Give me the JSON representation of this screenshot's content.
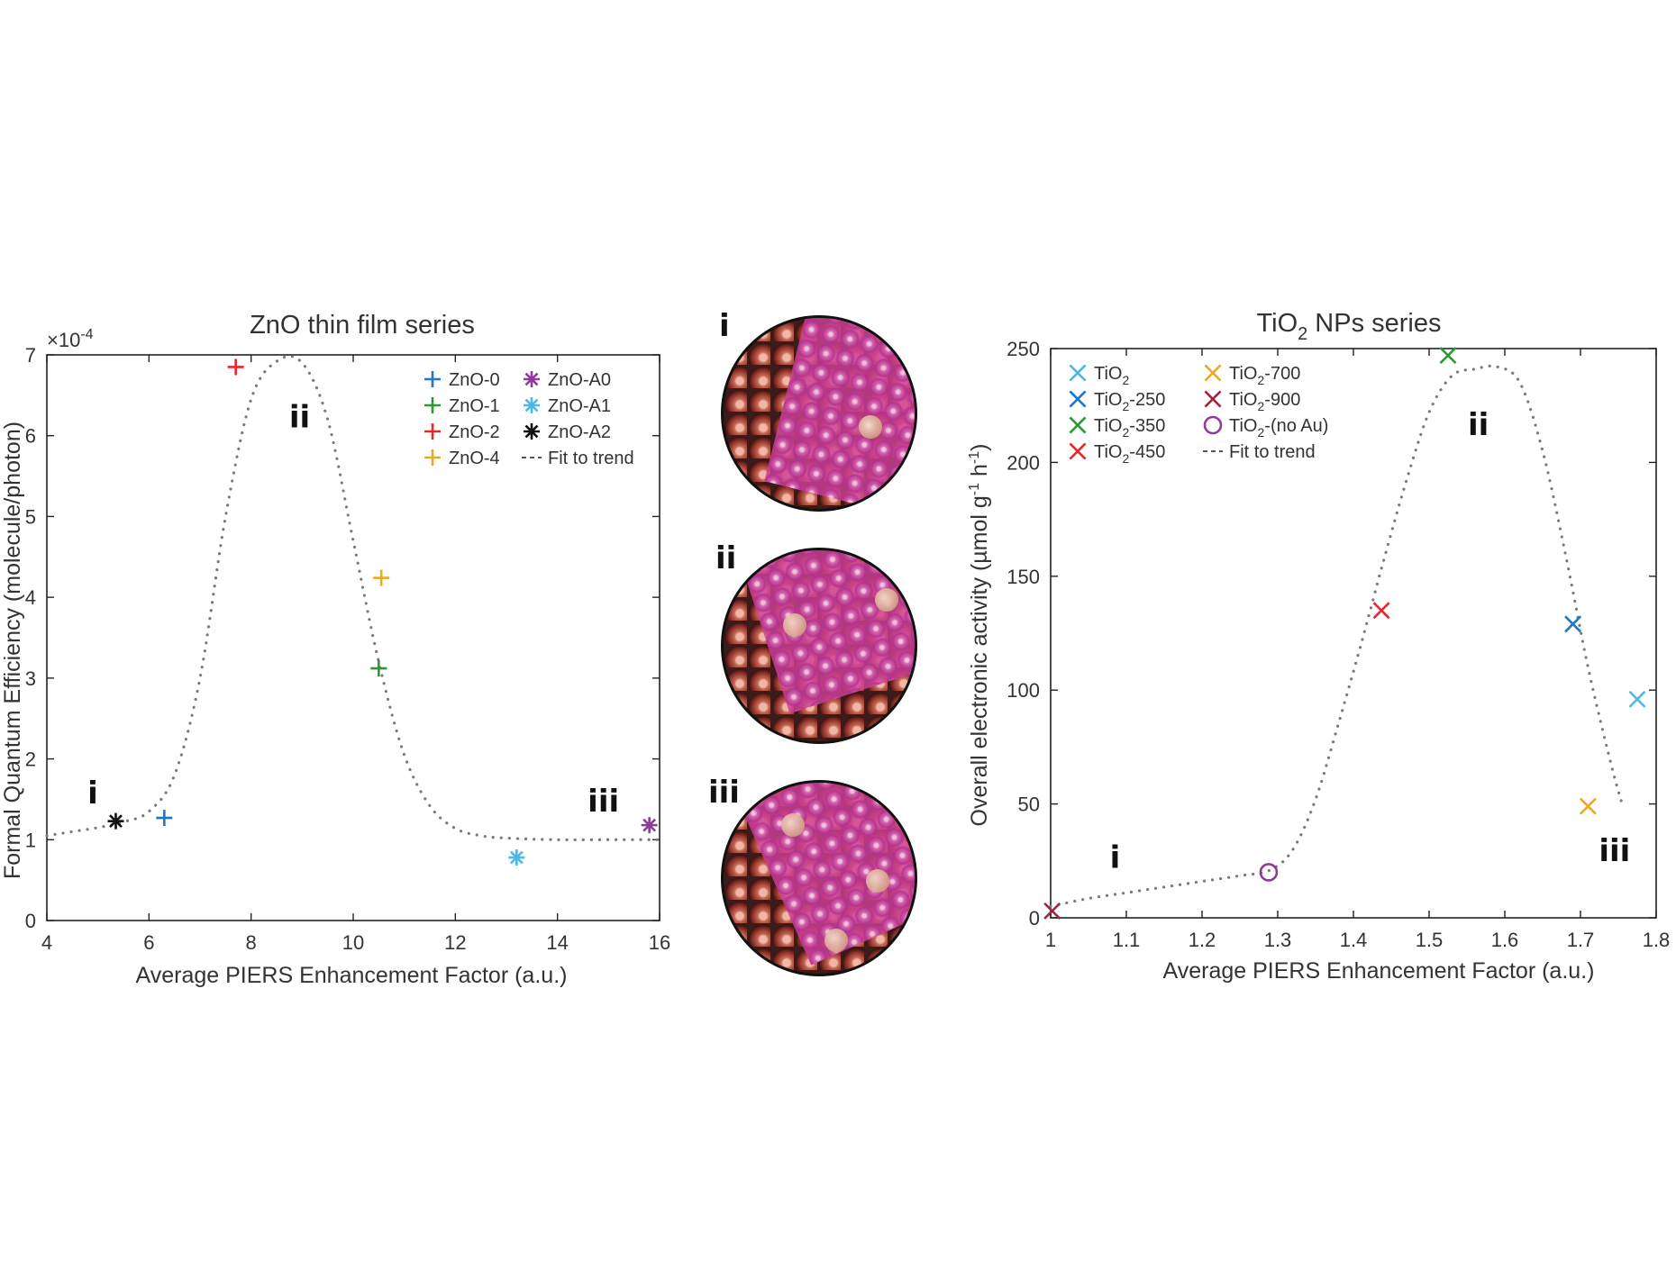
{
  "chart_data": [
    {
      "type": "scatter",
      "title": "ZnO thin film series",
      "xlabel": "Average PIERS Enhancement Factor (a.u.)",
      "ylabel": "Formal Quantum Efficiency (molecule/photon)",
      "y_multiplier": "×10",
      "y_multiplier_exp": "-4",
      "xlim": [
        4,
        16
      ],
      "ylim": [
        0,
        7
      ],
      "xticks": [
        4,
        6,
        8,
        10,
        12,
        14,
        16
      ],
      "yticks": [
        0,
        1,
        2,
        3,
        4,
        5,
        6,
        7
      ],
      "legend_position": "top-right",
      "series": [
        {
          "name": "ZnO-0",
          "marker": "plus",
          "color": "#1f77c4",
          "x": [
            6.3
          ],
          "y": [
            1.27
          ]
        },
        {
          "name": "ZnO-1",
          "marker": "plus",
          "color": "#2b9a35",
          "x": [
            10.5
          ],
          "y": [
            3.12
          ]
        },
        {
          "name": "ZnO-2",
          "marker": "plus",
          "color": "#e8262b",
          "x": [
            7.7
          ],
          "y": [
            6.85
          ]
        },
        {
          "name": "ZnO-4",
          "marker": "plus",
          "color": "#eaa92a",
          "x": [
            10.55
          ],
          "y": [
            4.24
          ]
        },
        {
          "name": "ZnO-A0",
          "marker": "asterisk",
          "color": "#8e3b97",
          "x": [
            15.8
          ],
          "y": [
            1.18
          ]
        },
        {
          "name": "ZnO-A1",
          "marker": "asterisk",
          "color": "#4db8e8",
          "x": [
            13.2
          ],
          "y": [
            0.78
          ]
        },
        {
          "name": "ZnO-A2",
          "marker": "asterisk",
          "color": "#111111",
          "x": [
            5.35
          ],
          "y": [
            1.23
          ]
        }
      ],
      "fit": {
        "name": "Fit to trend",
        "x": [
          4,
          4.5,
          5,
          5.5,
          6,
          6.5,
          7,
          7.5,
          8,
          8.5,
          9,
          9.5,
          10,
          10.5,
          11,
          11.5,
          12,
          12.5,
          13,
          14,
          15,
          16
        ],
        "y": [
          1.05,
          1.1,
          1.15,
          1.22,
          1.35,
          1.8,
          3.0,
          5.0,
          6.45,
          6.92,
          6.9,
          6.2,
          4.7,
          3.2,
          2.05,
          1.42,
          1.14,
          1.05,
          1.02,
          1.0,
          1.0,
          1.0
        ]
      },
      "annotations": [
        {
          "text": "i",
          "x": 4.9,
          "y": 1.45
        },
        {
          "text": "ii",
          "x": 8.95,
          "y": 6.1
        },
        {
          "text": "iii",
          "x": 14.9,
          "y": 1.35
        }
      ]
    },
    {
      "type": "scatter",
      "title": "TiO",
      "title_sub": "2",
      "title_rest": " NPs series",
      "xlabel": "Average PIERS Enhancement Factor (a.u.)",
      "ylabel": "Overall electronic activity (µmol g",
      "ylabel_sup1": "-1",
      "ylabel_mid": " h",
      "ylabel_sup2": "-1",
      "ylabel_end": ")",
      "xlim": [
        1,
        1.8
      ],
      "ylim": [
        0,
        250
      ],
      "xticks": [
        1,
        1.1,
        1.2,
        1.3,
        1.4,
        1.5,
        1.6,
        1.7,
        1.8
      ],
      "yticks": [
        0,
        50,
        100,
        150,
        200,
        250
      ],
      "legend_position": "top-left",
      "series": [
        {
          "name": "TiO",
          "sub": "2",
          "rest": "",
          "marker": "x",
          "color": "#4db8e8",
          "x": [
            1.775
          ],
          "y": [
            96
          ]
        },
        {
          "name": "TiO",
          "sub": "2",
          "rest": "-250",
          "marker": "x",
          "color": "#1f77c4",
          "x": [
            1.69
          ],
          "y": [
            129
          ]
        },
        {
          "name": "TiO",
          "sub": "2",
          "rest": "-350",
          "marker": "x",
          "color": "#2b9a35",
          "x": [
            1.525
          ],
          "y": [
            247
          ]
        },
        {
          "name": "TiO",
          "sub": "2",
          "rest": "-450",
          "marker": "x",
          "color": "#e8262b",
          "x": [
            1.437
          ],
          "y": [
            135
          ]
        },
        {
          "name": "TiO",
          "sub": "2",
          "rest": "-700",
          "marker": "x",
          "color": "#eaa92a",
          "x": [
            1.71
          ],
          "y": [
            49
          ]
        },
        {
          "name": "TiO",
          "sub": "2",
          "rest": "-900",
          "marker": "x",
          "color": "#a3243f",
          "x": [
            1.002
          ],
          "y": [
            3
          ]
        },
        {
          "name": "TiO",
          "sub": "2",
          "rest": "-(no Au)",
          "marker": "circle",
          "color": "#8e3b97",
          "x": [
            1.288
          ],
          "y": [
            20
          ]
        }
      ],
      "fit": {
        "name": "Fit to trend",
        "x": [
          1.0,
          1.05,
          1.1,
          1.15,
          1.2,
          1.25,
          1.29,
          1.32,
          1.35,
          1.38,
          1.41,
          1.44,
          1.47,
          1.5,
          1.53,
          1.56,
          1.59,
          1.62,
          1.65,
          1.68,
          1.71,
          1.74,
          1.755
        ],
        "y": [
          5,
          8.5,
          11,
          13.5,
          16,
          18.5,
          21,
          30,
          52,
          85,
          120,
          157,
          192,
          222,
          238,
          241,
          242,
          235,
          205,
          160,
          110,
          68,
          50
        ]
      },
      "annotations": [
        {
          "text": "i",
          "x": 1.085,
          "y": 22
        },
        {
          "text": "ii",
          "x": 1.565,
          "y": 212
        },
        {
          "text": "iii",
          "x": 1.745,
          "y": 25
        }
      ]
    }
  ],
  "insets": [
    {
      "label": "i"
    },
    {
      "label": "ii"
    },
    {
      "label": "iii"
    }
  ]
}
